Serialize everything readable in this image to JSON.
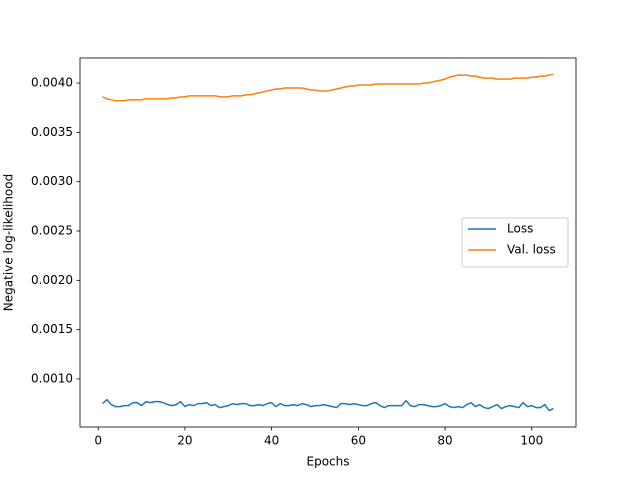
{
  "chart_data": {
    "type": "line",
    "xlabel": "Epochs",
    "ylabel": "Negative log-likelihood",
    "x": [
      1,
      2,
      3,
      4,
      5,
      6,
      7,
      8,
      9,
      10,
      11,
      12,
      13,
      14,
      15,
      16,
      17,
      18,
      19,
      20,
      21,
      22,
      23,
      24,
      25,
      26,
      27,
      28,
      29,
      30,
      31,
      32,
      33,
      34,
      35,
      36,
      37,
      38,
      39,
      40,
      41,
      42,
      43,
      44,
      45,
      46,
      47,
      48,
      49,
      50,
      51,
      52,
      53,
      54,
      55,
      56,
      57,
      58,
      59,
      60,
      61,
      62,
      63,
      64,
      65,
      66,
      67,
      68,
      69,
      70,
      71,
      72,
      73,
      74,
      75,
      76,
      77,
      78,
      79,
      80,
      81,
      82,
      83,
      84,
      85,
      86,
      87,
      88,
      89,
      90,
      91,
      92,
      93,
      94,
      95,
      96,
      97,
      98,
      99,
      100,
      101,
      102,
      103,
      104,
      105
    ],
    "series": [
      {
        "name": "Loss",
        "color": "#1f77b4",
        "values": [
          0.00075,
          0.00079,
          0.00074,
          0.00072,
          0.00072,
          0.00073,
          0.00073,
          0.00076,
          0.00076,
          0.00073,
          0.00077,
          0.00076,
          0.00077,
          0.00077,
          0.00076,
          0.00074,
          0.00073,
          0.00074,
          0.00077,
          0.00072,
          0.00074,
          0.00073,
          0.00075,
          0.00075,
          0.00076,
          0.00073,
          0.00074,
          0.00071,
          0.00072,
          0.00073,
          0.00075,
          0.00074,
          0.00075,
          0.00075,
          0.00073,
          0.00073,
          0.00074,
          0.00073,
          0.00075,
          0.00076,
          0.00072,
          0.00075,
          0.00073,
          0.00073,
          0.00074,
          0.00073,
          0.00075,
          0.00074,
          0.00072,
          0.00073,
          0.00073,
          0.00074,
          0.00073,
          0.00072,
          0.00071,
          0.00075,
          0.00075,
          0.00074,
          0.00075,
          0.00074,
          0.00073,
          0.00073,
          0.00075,
          0.00076,
          0.00073,
          0.00071,
          0.00073,
          0.00073,
          0.00073,
          0.00073,
          0.00078,
          0.00073,
          0.00072,
          0.00074,
          0.00074,
          0.00073,
          0.00072,
          0.00072,
          0.00073,
          0.00075,
          0.00072,
          0.00071,
          0.00072,
          0.00071,
          0.00074,
          0.00076,
          0.00072,
          0.00074,
          0.00071,
          0.0007,
          0.00072,
          0.00074,
          0.0007,
          0.00072,
          0.00073,
          0.00072,
          0.00071,
          0.00076,
          0.00072,
          0.00073,
          0.00071,
          0.00071,
          0.00074,
          0.00068,
          0.0007
        ]
      },
      {
        "name": "Val. loss",
        "color": "#ff7f0e",
        "values": [
          0.00386,
          0.00384,
          0.00383,
          0.00382,
          0.00382,
          0.00382,
          0.00383,
          0.00383,
          0.00383,
          0.00383,
          0.00384,
          0.00384,
          0.00384,
          0.00384,
          0.00384,
          0.00384,
          0.00385,
          0.00385,
          0.00386,
          0.00386,
          0.00387,
          0.00387,
          0.00387,
          0.00387,
          0.00387,
          0.00387,
          0.00387,
          0.00386,
          0.00386,
          0.00386,
          0.00387,
          0.00387,
          0.00387,
          0.00388,
          0.00388,
          0.00389,
          0.0039,
          0.00391,
          0.00392,
          0.00393,
          0.00394,
          0.00394,
          0.00395,
          0.00395,
          0.00395,
          0.00395,
          0.00395,
          0.00394,
          0.00393,
          0.00393,
          0.00392,
          0.00392,
          0.00392,
          0.00393,
          0.00394,
          0.00395,
          0.00396,
          0.00397,
          0.00397,
          0.00398,
          0.00398,
          0.00398,
          0.00398,
          0.00399,
          0.00399,
          0.00399,
          0.00399,
          0.00399,
          0.00399,
          0.00399,
          0.00399,
          0.00399,
          0.00399,
          0.00399,
          0.004,
          0.004,
          0.00401,
          0.00402,
          0.00403,
          0.00404,
          0.00406,
          0.00407,
          0.00408,
          0.00408,
          0.00408,
          0.00407,
          0.00407,
          0.00406,
          0.00405,
          0.00405,
          0.00405,
          0.00404,
          0.00404,
          0.00404,
          0.00404,
          0.00405,
          0.00405,
          0.00405,
          0.00405,
          0.00406,
          0.00406,
          0.00407,
          0.00407,
          0.00408,
          0.00409
        ]
      }
    ],
    "xlim": [
      -4.2,
      110.2
    ],
    "xticks": [
      0,
      20,
      40,
      60,
      80,
      100
    ],
    "ylim": [
      0.000513,
      0.004254
    ],
    "yticks": [
      {
        "value": 0.001,
        "label": "0.0010"
      },
      {
        "value": 0.0015,
        "label": "0.0015"
      },
      {
        "value": 0.002,
        "label": "0.0020"
      },
      {
        "value": 0.0025,
        "label": "0.0025"
      },
      {
        "value": 0.003,
        "label": "0.0030"
      },
      {
        "value": 0.0035,
        "label": "0.0035"
      },
      {
        "value": 0.004,
        "label": "0.0040"
      }
    ],
    "legend": "center right",
    "grid": false
  }
}
